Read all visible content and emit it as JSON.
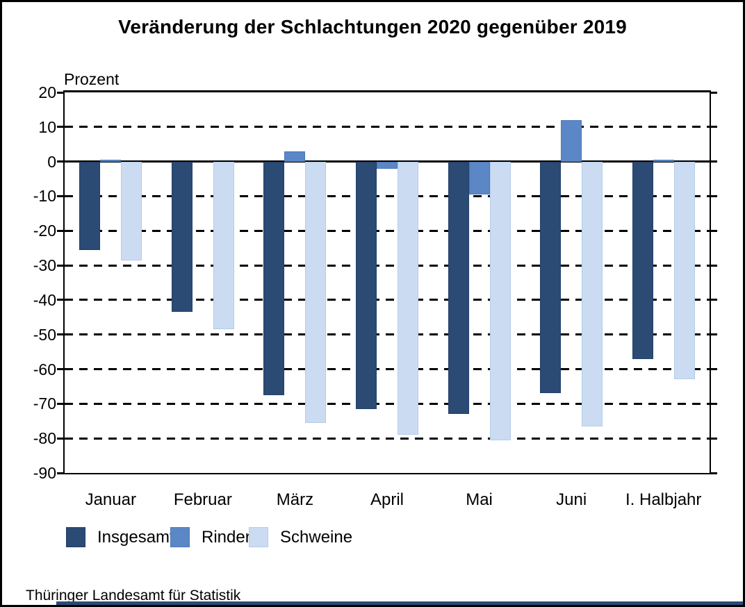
{
  "title": "Veränderung der Schlachtungen 2020 gegenüber 2019",
  "source": "Thüringer Landesamt für Statistik",
  "chart_data": {
    "type": "bar",
    "title": "Veränderung der Schlachtungen 2020 gegenüber 2019",
    "xlabel": "",
    "ylabel": "Prozent",
    "ylim": [
      -90,
      20
    ],
    "ytick_step": 10,
    "grid": "horizontal dashed, solid zero line",
    "legend_position": "bottom",
    "categories": [
      "Januar",
      "Februar",
      "März",
      "April",
      "Mai",
      "Juni",
      "I. Halbjahr"
    ],
    "series": [
      {
        "name": "Insgesamt",
        "color": "#2b4a74",
        "border_color": "#22406a",
        "values": [
          -25.5,
          -43.5,
          -67.5,
          -71.5,
          -73,
          -67,
          -57
        ]
      },
      {
        "name": "Rinder",
        "color": "#5b87c6",
        "border_color": "#4a77b8",
        "values": [
          0.5,
          0,
          3,
          -2,
          -9.5,
          12,
          0.5
        ]
      },
      {
        "name": "Schweine",
        "color": "#cbdcf2",
        "border_color": "#b3cbea",
        "values": [
          -28.5,
          -48.5,
          -75.5,
          -79,
          -80.5,
          -76.5,
          -63
        ]
      }
    ]
  }
}
